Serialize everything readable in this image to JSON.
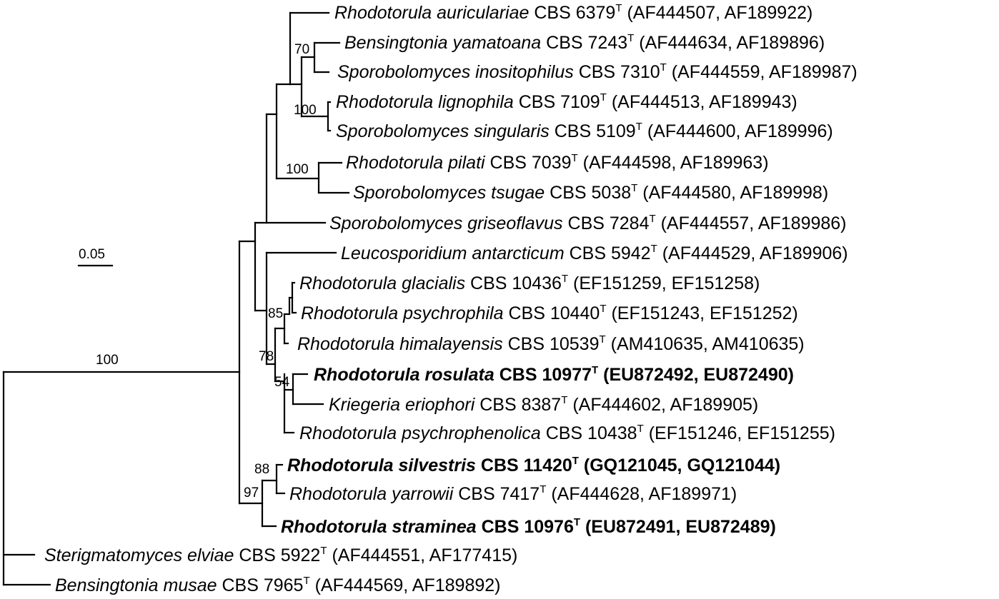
{
  "taxa": [
    {
      "genus": "Rhodotorula auriculariae",
      "strain": "CBS 6379",
      "type_mark": "T",
      "accessions": "(AF444507, AF189922)",
      "bold": false
    },
    {
      "genus": "Bensingtonia yamatoana",
      "strain": "CBS 7243",
      "type_mark": "T",
      "accessions": "(AF444634, AF189896)",
      "bold": false
    },
    {
      "genus": "Sporobolomyces inositophilus",
      "strain": "CBS 7310",
      "type_mark": "T",
      "accessions": "(AF444559, AF189987)",
      "bold": false
    },
    {
      "genus": "Rhodotorula lignophila",
      "strain": "CBS 7109",
      "type_mark": "T",
      "accessions": "(AF444513, AF189943)",
      "bold": false
    },
    {
      "genus": "Sporobolomyces singularis",
      "strain": "CBS 5109",
      "type_mark": "T",
      "accessions": "(AF444600, AF189996)",
      "bold": false
    },
    {
      "genus": "Rhodotorula pilati",
      "strain": "CBS 7039",
      "type_mark": "T",
      "accessions": "(AF444598, AF189963)",
      "bold": false
    },
    {
      "genus": "Sporobolomyces tsugae",
      "strain": "CBS 5038",
      "type_mark": "T",
      "accessions": "(AF444580, AF189998)",
      "bold": false
    },
    {
      "genus": "Sporobolomyces griseoflavus",
      "strain": "CBS 7284",
      "type_mark": "T",
      "accessions": "(AF444557, AF189986)",
      "bold": false
    },
    {
      "genus": "Leucosporidium antarcticum",
      "strain": "CBS 5942",
      "type_mark": "T",
      "accessions": "(AF444529, AF189906)",
      "bold": false
    },
    {
      "genus": "Rhodotorula glacialis",
      "strain": "CBS 10436",
      "type_mark": "T",
      "accessions": "(EF151259, EF151258)",
      "bold": false
    },
    {
      "genus": "Rhodotorula psychrophila",
      "strain": "CBS 10440",
      "type_mark": "T",
      "accessions": "(EF151243, EF151252)",
      "bold": false
    },
    {
      "genus": "Rhodotorula himalayensis",
      "strain": "CBS 10539",
      "type_mark": "T",
      "accessions": "(AM410635, AM410635)",
      "bold": false
    },
    {
      "genus": "Rhodotorula rosulata",
      "strain": "CBS 10977",
      "type_mark": "T",
      "accessions": "(EU872492, EU872490)",
      "bold": true
    },
    {
      "genus": "Kriegeria eriophori",
      "strain": "CBS 8387",
      "type_mark": "T",
      "accessions": "(AF444602, AF189905)",
      "bold": false
    },
    {
      "genus": "Rhodotorula psychrophenolica",
      "strain": "CBS 10438",
      "type_mark": "T",
      "accessions": "(EF151246, EF151255)",
      "bold": false
    },
    {
      "genus": "Rhodotorula silvestris",
      "strain": "CBS 11420",
      "type_mark": "T",
      "accessions": "(GQ121045, GQ121044)",
      "bold": true
    },
    {
      "genus": "Rhodotorula yarrowii",
      "strain": "CBS 7417",
      "type_mark": "T",
      "accessions": "(AF444628, AF189971)",
      "bold": false
    },
    {
      "genus": "Rhodotorula straminea",
      "strain": "CBS 10976",
      "type_mark": "T",
      "accessions": "(EU872491, EU872489)",
      "bold": true
    },
    {
      "genus": "Sterigmatomyces elviae",
      "strain": "CBS 5922",
      "type_mark": "T",
      "accessions": "(AF444551, AF177415)",
      "bold": false
    },
    {
      "genus": "Bensingtonia musae",
      "strain": "CBS 7965",
      "type_mark": "T",
      "accessions": "(AF444569, AF189892)",
      "bold": false
    }
  ],
  "bootstrap": {
    "b70": "70",
    "b100_lignophila": "100",
    "b100_pilati": "100",
    "b85": "85",
    "b78": "78",
    "b54": "54",
    "b88": "88",
    "b97": "97",
    "b100_root": "100"
  },
  "scale_bar": {
    "label": "0.05"
  },
  "colors": {
    "line": "#000000",
    "text": "#000000",
    "background": "#ffffff"
  }
}
